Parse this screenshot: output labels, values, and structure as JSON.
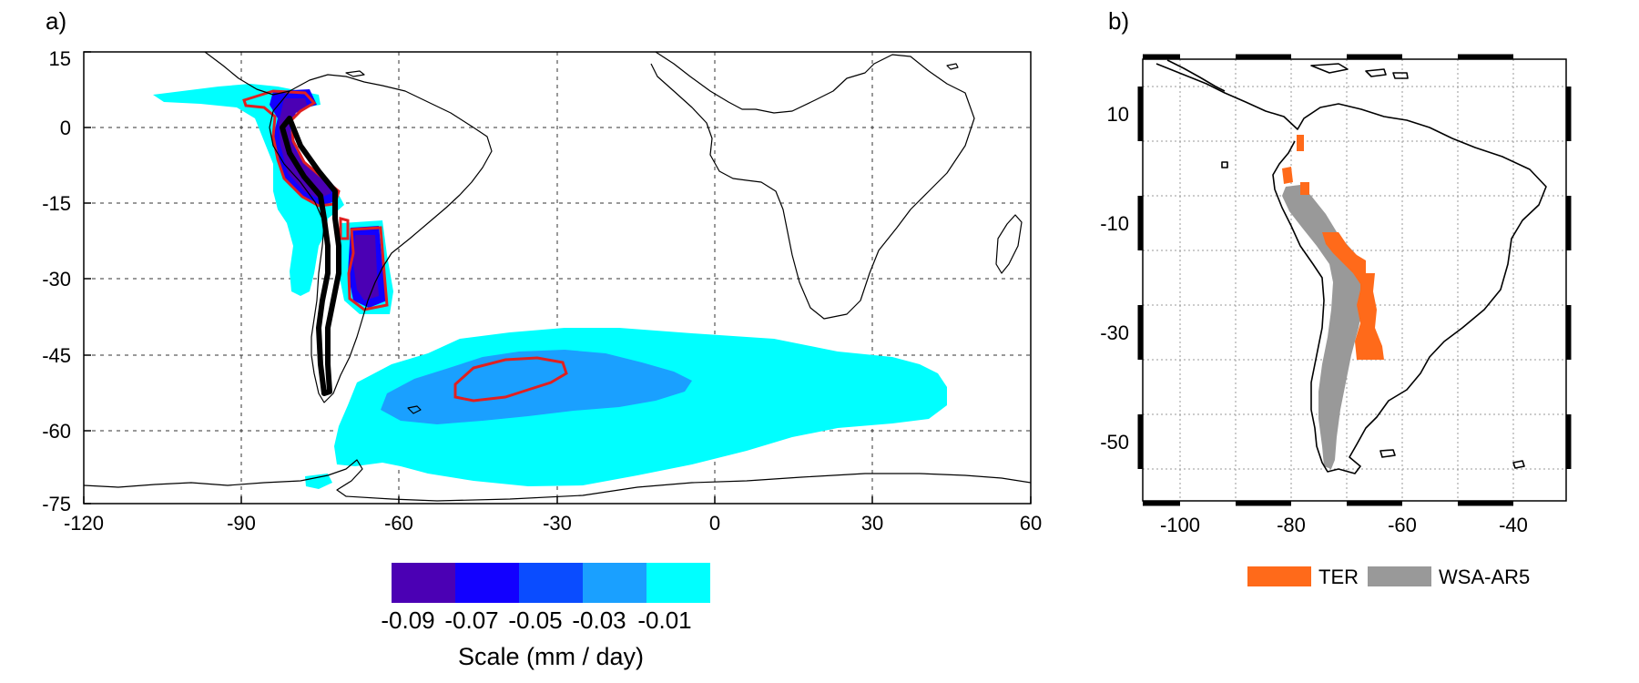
{
  "panel_a": {
    "label": "a)",
    "x_ticks": [
      "-120",
      "-90",
      "-60",
      "-30",
      "0",
      "30",
      "60"
    ],
    "y_ticks": [
      "15",
      "0",
      "-15",
      "-30",
      "-45",
      "-60",
      "-75"
    ],
    "colorbar": {
      "colors": [
        "#4b00b4",
        "#1200ff",
        "#0a4cff",
        "#1aa0ff",
        "#00ffff"
      ],
      "tick_labels": [
        "-0.09",
        "-0.07",
        "-0.05",
        "-0.03",
        "-0.01"
      ],
      "title": "Scale (mm / day)"
    }
  },
  "panel_b": {
    "label": "b)",
    "x_ticks": [
      "-100",
      "-80",
      "-60",
      "-40"
    ],
    "y_ticks": [
      "10",
      "-10",
      "-30",
      "-50"
    ],
    "legend": [
      {
        "label": "TER",
        "color": "#ff6a1a"
      },
      {
        "label": "WSA-AR5",
        "color": "#999999"
      }
    ]
  }
}
